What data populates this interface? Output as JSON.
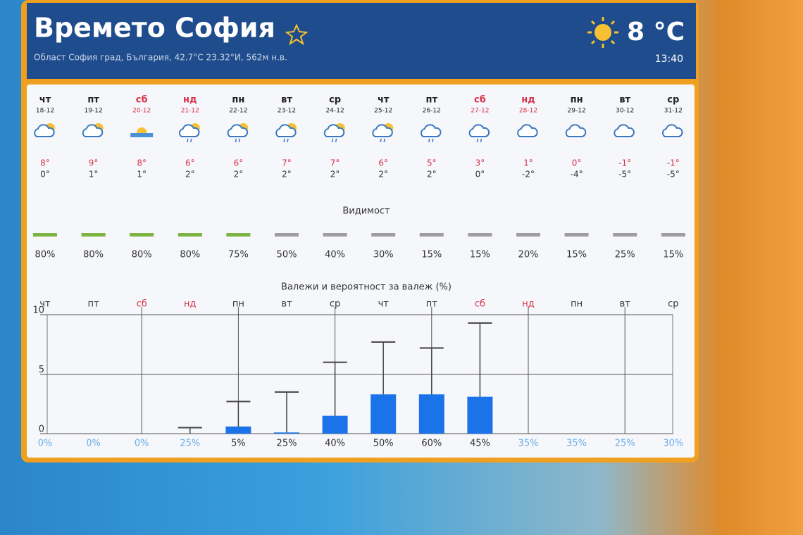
{
  "header": {
    "title": "Времето София",
    "subtitle": "Област София град, България, 42.7°С 23.32°И, 562м н.в.",
    "temperature": "8 °C",
    "time": "13:40"
  },
  "days": [
    {
      "dow": "чт",
      "date": "18-12",
      "high": "8°",
      "low": "0°"
    },
    {
      "dow": "пт",
      "date": "19-12",
      "high": "9°",
      "low": "1°"
    },
    {
      "dow": "сб",
      "date": "20-12",
      "high": "8°",
      "low": "1°"
    },
    {
      "dow": "нд",
      "date": "21-12",
      "high": "6°",
      "low": "2°"
    },
    {
      "dow": "пн",
      "date": "22-12",
      "high": "6°",
      "low": "2°"
    },
    {
      "dow": "вт",
      "date": "23-12",
      "high": "7°",
      "low": "2°"
    },
    {
      "dow": "ср",
      "date": "24-12",
      "high": "7°",
      "low": "2°"
    },
    {
      "dow": "чт",
      "date": "25-12",
      "high": "6°",
      "low": "2°"
    },
    {
      "dow": "пт",
      "date": "26-12",
      "high": "5°",
      "low": "2°"
    },
    {
      "dow": "сб",
      "date": "27-12",
      "high": "3°",
      "low": "0°"
    },
    {
      "dow": "нд",
      "date": "28-12",
      "high": "1°",
      "low": "-2°"
    },
    {
      "dow": "пн",
      "date": "29-12",
      "high": "0°",
      "low": "-4°"
    },
    {
      "dow": "вт",
      "date": "30-12",
      "high": "-1°",
      "low": "-5°"
    },
    {
      "dow": "ср",
      "date": "31-12",
      "high": "-1°",
      "low": "-5°"
    }
  ],
  "visibility": {
    "title": "Видимост",
    "labels": [
      "80%",
      "80%",
      "80%",
      "80%",
      "75%",
      "50%",
      "40%",
      "30%",
      "15%",
      "15%",
      "20%",
      "15%",
      "25%",
      "15%"
    ],
    "colors": [
      "#7cb342",
      "#7cb342",
      "#7cb342",
      "#7cb342",
      "#7cb342",
      "#9e9e9e",
      "#9e9e9e",
      "#9e9e9e",
      "#9e9e9e",
      "#9e9e9e",
      "#9e9e9e",
      "#9e9e9e",
      "#9e9e9e",
      "#9e9e9e"
    ]
  },
  "chart_data": {
    "type": "bar",
    "title": "Валежи и вероятност за валеж (%)",
    "categories": [
      "чт",
      "пт",
      "сб",
      "нд",
      "пн",
      "вт",
      "ср",
      "чт",
      "пт",
      "сб",
      "нд",
      "пн",
      "вт",
      "ср"
    ],
    "values": [
      0,
      0,
      0,
      0,
      0.6,
      0.1,
      1.5,
      3.3,
      3.3,
      3.1,
      0,
      0,
      0,
      0
    ],
    "upper": [
      0,
      0,
      0,
      0.5,
      2.7,
      3.5,
      6.0,
      7.7,
      7.2,
      9.3,
      0,
      0,
      0,
      0
    ],
    "probability_labels": [
      "0%",
      "0%",
      "0%",
      "25%",
      "5%",
      "25%",
      "40%",
      "50%",
      "60%",
      "45%",
      "35%",
      "35%",
      "25%",
      "30%"
    ],
    "color": "#1a73e8",
    "ylim": [
      0,
      10
    ],
    "yticks": [
      0,
      5,
      10
    ],
    "grid": true
  }
}
